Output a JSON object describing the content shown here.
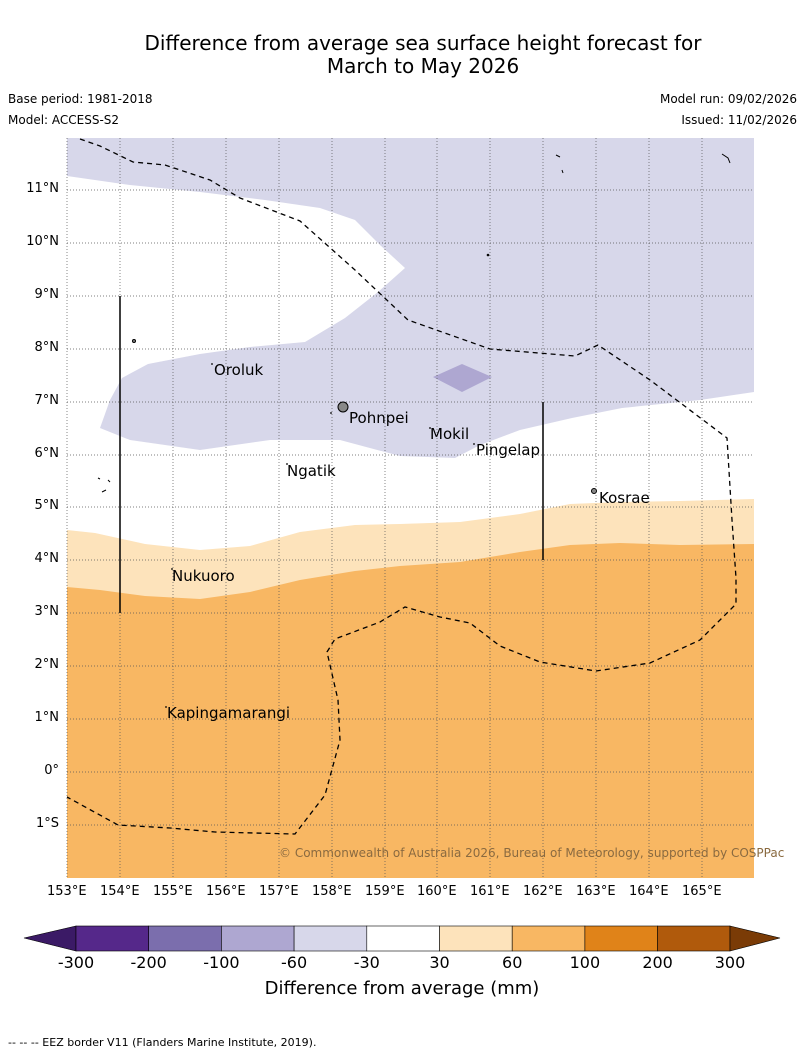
{
  "title": {
    "line1": "Difference from average sea surface height forecast for",
    "line2": "March to May 2026"
  },
  "meta": {
    "base_period": "Base period: 1981-2018",
    "model": "Model: ACCESS-S2",
    "model_run": "Model run: 09/02/2026",
    "issued": "Issued: 11/02/2026"
  },
  "map": {
    "lat_labels": [
      "11°N",
      "10°N",
      "9°N",
      "8°N",
      "7°N",
      "6°N",
      "5°N",
      "4°N",
      "3°N",
      "2°N",
      "1°N",
      "0°",
      "1°S"
    ],
    "lon_labels": [
      "153°E",
      "154°E",
      "155°E",
      "156°E",
      "157°E",
      "158°E",
      "159°E",
      "160°E",
      "161°E",
      "162°E",
      "163°E",
      "164°E",
      "165°E"
    ],
    "places": {
      "oroluk": "Oroluk",
      "pohnpei": "Pohnpei",
      "mokil": "Mokil",
      "pingelap": "Pingelap",
      "ngatik": "Ngatik",
      "kosrae": "Kosrae",
      "nukuoro": "Nukuoro",
      "kapingamarangi": "Kapingamarangi"
    },
    "credit": "© Commonwealth of Australia 2026, Bureau of Meteorology, supported by COSPPac"
  },
  "colorbar": {
    "ticks": [
      "-300",
      "-200",
      "-100",
      "-60",
      "-30",
      "30",
      "60",
      "100",
      "200",
      "300"
    ],
    "colors": [
      "#3b1a66",
      "#55288a",
      "#7b6ead",
      "#aea7d1",
      "#d7d7ea",
      "#ffffff",
      "#fde3bb",
      "#f8b763",
      "#e08319",
      "#b05a0c",
      "#7a3b06"
    ],
    "label": "Difference from average (mm)"
  },
  "footnote": "--  --  -- EEZ border V11 (Flanders Marine Institute, 2019)."
}
